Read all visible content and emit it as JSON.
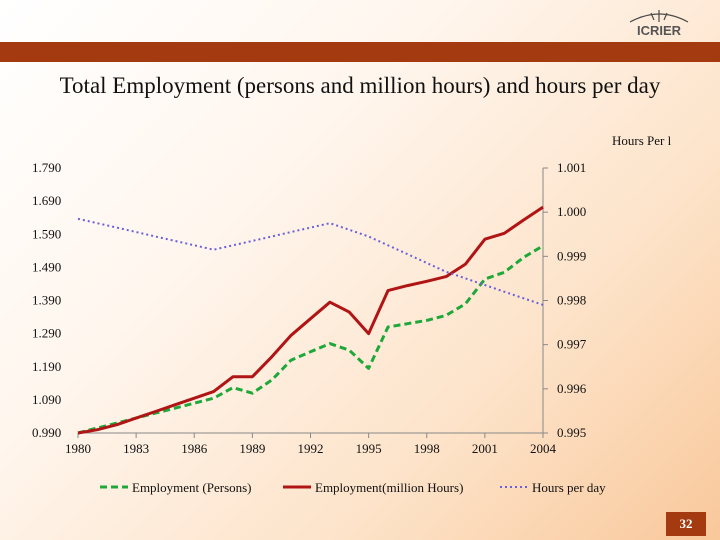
{
  "slide": {
    "title": "Total Employment (persons and million hours) and hours per day",
    "logo_text": "ICRIER",
    "page_number": "32",
    "accent_color": "#a43a0f"
  },
  "chart_data": {
    "type": "line",
    "title": "Total Employment (persons and million hours) and hours per day",
    "x": [
      1980,
      1981,
      1982,
      1983,
      1984,
      1985,
      1986,
      1987,
      1988,
      1989,
      1990,
      1991,
      1992,
      1993,
      1994,
      1995,
      1996,
      1997,
      1998,
      1999,
      2000,
      2001,
      2002,
      2003,
      2004
    ],
    "x_ticks": [
      "1980",
      "1983",
      "1986",
      "1989",
      "1992",
      "1995",
      "1998",
      "2001",
      "2004"
    ],
    "xlim": [
      1980,
      2004
    ],
    "y_left": {
      "ticks": [
        "0.990",
        "1.090",
        "1.190",
        "1.290",
        "1.390",
        "1.490",
        "1.590",
        "1.690",
        "1.790"
      ],
      "ylim": [
        0.99,
        1.79
      ]
    },
    "y_right": {
      "label": "Hours Per l",
      "ticks": [
        "0.995",
        "0.996",
        "0.997",
        "0.998",
        "0.999",
        "1.000",
        "1.001"
      ],
      "ylim": [
        0.995,
        1.001
      ]
    },
    "series": [
      {
        "name": "Employment (Persons)",
        "axis": "left",
        "color": "#1fa83a",
        "style": "dashed",
        "values": [
          0.99,
          1.005,
          1.02,
          1.035,
          1.05,
          1.065,
          1.08,
          1.095,
          1.127,
          1.11,
          1.15,
          1.21,
          1.235,
          1.26,
          1.24,
          1.185,
          1.31,
          1.32,
          1.33,
          1.345,
          1.38,
          1.455,
          1.475,
          1.52,
          1.555
        ]
      },
      {
        "name": "Employment(million Hours)",
        "axis": "left",
        "color": "#b01414",
        "style": "solid",
        "values": [
          0.99,
          1.0,
          1.015,
          1.035,
          1.055,
          1.075,
          1.095,
          1.115,
          1.16,
          1.16,
          1.22,
          1.285,
          1.335,
          1.385,
          1.355,
          1.29,
          1.42,
          1.435,
          1.448,
          1.462,
          1.5,
          1.575,
          1.593,
          1.633,
          1.672
        ]
      },
      {
        "name": "Hours per day",
        "axis": "right",
        "color": "#6a60d8",
        "style": "dotted",
        "values": [
          0.99985,
          0.99975,
          0.99965,
          0.99955,
          0.99945,
          0.99935,
          0.99925,
          0.99915,
          0.99925,
          0.99935,
          0.99945,
          0.99955,
          0.99965,
          0.99975,
          0.9996,
          0.99945,
          0.99925,
          0.99905,
          0.99885,
          0.99865,
          0.9985,
          0.99835,
          0.9982,
          0.99805,
          0.9979
        ]
      }
    ],
    "legend_position": "bottom",
    "grid": false
  }
}
